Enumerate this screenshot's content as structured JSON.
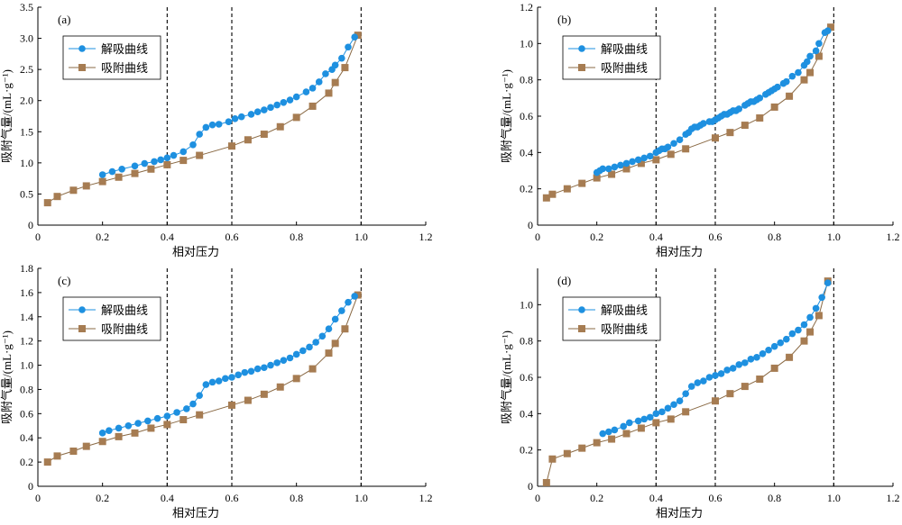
{
  "chart_data": [
    {
      "type": "line",
      "panel_label": "(a)",
      "xlabel": "相对压力",
      "ylabel": "吸附气量/(mL·g⁻¹)",
      "xlim": [
        0,
        1.2
      ],
      "ylim": [
        0,
        3.5
      ],
      "xticks": [
        "0",
        "0.2",
        "0.4",
        "0.6",
        "0.8",
        "1.0",
        "1.2"
      ],
      "yticks": [
        "0",
        "0.5",
        "1.0",
        "1.5",
        "2.0",
        "2.5",
        "3.0",
        "3.5"
      ],
      "reference_lines_x": [
        0.4,
        0.6,
        1.0
      ],
      "legend_position": "top-left",
      "series": [
        {
          "name": "解吸曲线",
          "marker": "circle",
          "color": "#1e90e0",
          "x": [
            0.2,
            0.23,
            0.26,
            0.3,
            0.33,
            0.36,
            0.38,
            0.4,
            0.42,
            0.45,
            0.48,
            0.5,
            0.52,
            0.54,
            0.56,
            0.59,
            0.61,
            0.63,
            0.66,
            0.68,
            0.7,
            0.72,
            0.74,
            0.76,
            0.78,
            0.8,
            0.83,
            0.85,
            0.87,
            0.89,
            0.91,
            0.92,
            0.94,
            0.96,
            0.98
          ],
          "y": [
            0.81,
            0.86,
            0.9,
            0.95,
            0.99,
            1.02,
            1.05,
            1.08,
            1.12,
            1.18,
            1.29,
            1.46,
            1.57,
            1.61,
            1.62,
            1.66,
            1.71,
            1.74,
            1.78,
            1.82,
            1.85,
            1.89,
            1.93,
            1.97,
            2.01,
            2.06,
            2.14,
            2.2,
            2.3,
            2.43,
            2.5,
            2.57,
            2.68,
            2.86,
            3.02
          ]
        },
        {
          "name": "吸附曲线",
          "marker": "square",
          "color": "#a67c52",
          "x": [
            0.03,
            0.06,
            0.11,
            0.15,
            0.2,
            0.25,
            0.3,
            0.35,
            0.4,
            0.45,
            0.5,
            0.6,
            0.65,
            0.7,
            0.75,
            0.8,
            0.85,
            0.9,
            0.92,
            0.95,
            0.99
          ],
          "y": [
            0.36,
            0.46,
            0.56,
            0.63,
            0.7,
            0.77,
            0.83,
            0.9,
            0.97,
            1.04,
            1.12,
            1.27,
            1.37,
            1.46,
            1.58,
            1.73,
            1.91,
            2.12,
            2.29,
            2.53,
            3.05
          ]
        }
      ]
    },
    {
      "type": "line",
      "panel_label": "(b)",
      "xlabel": "相对压力",
      "ylabel": "吸附气量/(mL·g⁻¹)",
      "xlim": [
        0,
        1.2
      ],
      "ylim": [
        0,
        1.2
      ],
      "xticks": [
        "0",
        "0.2",
        "0.4",
        "0.6",
        "0.8",
        "1.0",
        "1.2"
      ],
      "yticks": [
        "0",
        "0.2",
        "0.4",
        "0.6",
        "0.8",
        "1.0",
        "1.2"
      ],
      "reference_lines_x": [
        0.4,
        0.6,
        1.0
      ],
      "legend_position": "top-left",
      "series": [
        {
          "name": "解吸曲线",
          "marker": "circle",
          "color": "#1e90e0",
          "x": [
            0.2,
            0.21,
            0.22,
            0.24,
            0.26,
            0.28,
            0.3,
            0.32,
            0.34,
            0.36,
            0.38,
            0.4,
            0.41,
            0.42,
            0.43,
            0.44,
            0.46,
            0.48,
            0.5,
            0.51,
            0.52,
            0.53,
            0.54,
            0.55,
            0.56,
            0.58,
            0.59,
            0.6,
            0.61,
            0.62,
            0.63,
            0.64,
            0.65,
            0.66,
            0.67,
            0.68,
            0.7,
            0.71,
            0.72,
            0.73,
            0.74,
            0.75,
            0.77,
            0.78,
            0.79,
            0.8,
            0.81,
            0.83,
            0.84,
            0.86,
            0.88,
            0.9,
            0.91,
            0.92,
            0.94,
            0.95,
            0.97,
            0.98
          ],
          "y": [
            0.29,
            0.3,
            0.31,
            0.31,
            0.32,
            0.33,
            0.34,
            0.35,
            0.36,
            0.37,
            0.38,
            0.4,
            0.41,
            0.42,
            0.42,
            0.43,
            0.45,
            0.47,
            0.5,
            0.51,
            0.53,
            0.54,
            0.54,
            0.55,
            0.56,
            0.57,
            0.57,
            0.58,
            0.59,
            0.6,
            0.61,
            0.61,
            0.62,
            0.63,
            0.63,
            0.64,
            0.66,
            0.67,
            0.68,
            0.68,
            0.69,
            0.7,
            0.72,
            0.73,
            0.74,
            0.75,
            0.76,
            0.78,
            0.79,
            0.82,
            0.84,
            0.88,
            0.9,
            0.93,
            0.96,
            1.0,
            1.06,
            1.07
          ]
        },
        {
          "name": "吸附曲线",
          "marker": "square",
          "color": "#a67c52",
          "x": [
            0.03,
            0.05,
            0.1,
            0.15,
            0.2,
            0.25,
            0.3,
            0.35,
            0.4,
            0.45,
            0.5,
            0.6,
            0.65,
            0.7,
            0.75,
            0.8,
            0.85,
            0.9,
            0.92,
            0.95,
            0.99
          ],
          "y": [
            0.15,
            0.17,
            0.2,
            0.23,
            0.26,
            0.28,
            0.31,
            0.34,
            0.36,
            0.39,
            0.42,
            0.48,
            0.51,
            0.55,
            0.59,
            0.65,
            0.71,
            0.8,
            0.84,
            0.93,
            1.09
          ]
        }
      ]
    },
    {
      "type": "line",
      "panel_label": "(c)",
      "xlabel": "相对压力",
      "ylabel": "吸附气量/(mL·g⁻¹)",
      "xlim": [
        0,
        1.2
      ],
      "ylim": [
        0,
        1.8
      ],
      "xticks": [
        "0",
        "0.2",
        "0.4",
        "0.6",
        "0.8",
        "1.0",
        "1.2"
      ],
      "yticks": [
        "0",
        "0.2",
        "0.4",
        "0.6",
        "0.8",
        "1.0",
        "1.2",
        "1.4",
        "1.6",
        "1.8"
      ],
      "reference_lines_x": [
        0.4,
        0.6,
        1.0
      ],
      "legend_position": "top-left",
      "series": [
        {
          "name": "解吸曲线",
          "marker": "circle",
          "color": "#1e90e0",
          "x": [
            0.2,
            0.22,
            0.25,
            0.28,
            0.31,
            0.34,
            0.37,
            0.4,
            0.43,
            0.46,
            0.48,
            0.5,
            0.52,
            0.54,
            0.56,
            0.58,
            0.6,
            0.62,
            0.64,
            0.66,
            0.68,
            0.7,
            0.72,
            0.74,
            0.76,
            0.78,
            0.8,
            0.82,
            0.84,
            0.86,
            0.88,
            0.9,
            0.92,
            0.94,
            0.96,
            0.98
          ],
          "y": [
            0.44,
            0.46,
            0.48,
            0.5,
            0.52,
            0.54,
            0.56,
            0.58,
            0.61,
            0.64,
            0.68,
            0.75,
            0.84,
            0.86,
            0.87,
            0.89,
            0.9,
            0.92,
            0.94,
            0.95,
            0.97,
            0.98,
            1.0,
            1.02,
            1.04,
            1.06,
            1.09,
            1.12,
            1.15,
            1.19,
            1.24,
            1.3,
            1.38,
            1.45,
            1.52,
            1.57
          ]
        },
        {
          "name": "吸附曲线",
          "marker": "square",
          "color": "#a67c52",
          "x": [
            0.03,
            0.06,
            0.11,
            0.15,
            0.2,
            0.25,
            0.3,
            0.35,
            0.4,
            0.45,
            0.5,
            0.6,
            0.65,
            0.7,
            0.75,
            0.8,
            0.85,
            0.9,
            0.92,
            0.95,
            0.99
          ],
          "y": [
            0.2,
            0.25,
            0.29,
            0.33,
            0.37,
            0.41,
            0.44,
            0.48,
            0.51,
            0.55,
            0.59,
            0.67,
            0.71,
            0.76,
            0.82,
            0.89,
            0.97,
            1.1,
            1.18,
            1.3,
            1.58
          ]
        }
      ]
    },
    {
      "type": "line",
      "panel_label": "(d)",
      "xlabel": "相对压力",
      "ylabel": "吸附气量/(mL·g⁻¹)",
      "xlim": [
        0,
        1.2
      ],
      "ylim": [
        0,
        1.2
      ],
      "xticks": [
        "0",
        "0.2",
        "0.4",
        "0.6",
        "0.8",
        "1.0",
        "1.2"
      ],
      "yticks": [
        "0",
        "0.2",
        "0.4",
        "0.6",
        "0.8",
        "1.0"
      ],
      "reference_lines_x": [
        0.4,
        0.6,
        1.0
      ],
      "legend_position": "top-left",
      "series": [
        {
          "name": "解吸曲线",
          "marker": "circle",
          "color": "#1e90e0",
          "x": [
            0.22,
            0.24,
            0.26,
            0.29,
            0.31,
            0.34,
            0.36,
            0.38,
            0.4,
            0.42,
            0.44,
            0.46,
            0.48,
            0.5,
            0.52,
            0.54,
            0.56,
            0.58,
            0.6,
            0.62,
            0.64,
            0.66,
            0.68,
            0.7,
            0.72,
            0.74,
            0.76,
            0.78,
            0.8,
            0.82,
            0.84,
            0.86,
            0.88,
            0.9,
            0.92,
            0.94,
            0.96,
            0.98
          ],
          "y": [
            0.29,
            0.3,
            0.31,
            0.33,
            0.35,
            0.36,
            0.37,
            0.38,
            0.4,
            0.41,
            0.43,
            0.45,
            0.47,
            0.51,
            0.55,
            0.57,
            0.58,
            0.6,
            0.61,
            0.62,
            0.64,
            0.65,
            0.67,
            0.68,
            0.7,
            0.71,
            0.73,
            0.75,
            0.77,
            0.79,
            0.81,
            0.84,
            0.86,
            0.89,
            0.93,
            0.98,
            1.04,
            1.12
          ]
        },
        {
          "name": "吸附曲线",
          "marker": "square",
          "color": "#a67c52",
          "x": [
            0.03,
            0.05,
            0.1,
            0.15,
            0.2,
            0.25,
            0.3,
            0.35,
            0.4,
            0.45,
            0.5,
            0.6,
            0.65,
            0.7,
            0.75,
            0.8,
            0.85,
            0.9,
            0.92,
            0.95,
            0.98
          ],
          "y": [
            0.02,
            0.15,
            0.18,
            0.21,
            0.24,
            0.26,
            0.29,
            0.32,
            0.35,
            0.37,
            0.41,
            0.47,
            0.51,
            0.55,
            0.59,
            0.65,
            0.71,
            0.8,
            0.85,
            0.94,
            1.13
          ]
        }
      ]
    }
  ]
}
